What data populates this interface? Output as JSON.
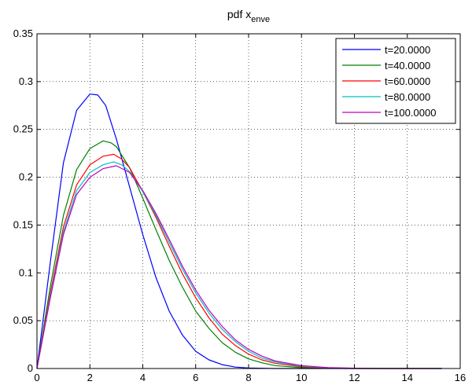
{
  "chart_data": {
    "type": "line",
    "title": "pdf x",
    "title_subscript": "enve",
    "xlabel": "",
    "ylabel": "",
    "xlim": [
      0,
      16
    ],
    "ylim": [
      0,
      0.35
    ],
    "xticks": [
      0,
      2,
      4,
      6,
      8,
      10,
      12,
      14,
      16
    ],
    "yticks": [
      0,
      0.05,
      0.1,
      0.15,
      0.2,
      0.25,
      0.3,
      0.35
    ],
    "xtick_labels": [
      "0",
      "2",
      "4",
      "6",
      "8",
      "10",
      "12",
      "14",
      "16"
    ],
    "ytick_labels": [
      "0",
      "0.05",
      "0.1",
      "0.15",
      "0.2",
      "0.25",
      "0.3",
      "0.35"
    ],
    "grid": true,
    "legend_position": "top-right",
    "series": [
      {
        "name": "t=20.0000",
        "color": "#0000ff",
        "x": [
          0,
          0.5,
          1,
          1.5,
          2,
          2.3,
          2.6,
          3,
          3.5,
          4,
          4.5,
          5,
          5.5,
          6,
          6.5,
          7,
          7.5,
          8,
          9,
          10,
          12,
          14,
          15.3
        ],
        "y": [
          0,
          0.11,
          0.215,
          0.27,
          0.287,
          0.286,
          0.275,
          0.24,
          0.19,
          0.14,
          0.095,
          0.06,
          0.035,
          0.018,
          0.009,
          0.004,
          0.0015,
          0.0005,
          0,
          0,
          0,
          0,
          0
        ]
      },
      {
        "name": "t=40.0000",
        "color": "#008000",
        "x": [
          0,
          0.5,
          1,
          1.5,
          2,
          2.5,
          2.8,
          3,
          3.5,
          4,
          4.5,
          5,
          5.5,
          6,
          6.5,
          7,
          7.5,
          8,
          8.5,
          9,
          10,
          11,
          12,
          13,
          14,
          15.3
        ],
        "y": [
          0,
          0.085,
          0.16,
          0.208,
          0.23,
          0.238,
          0.236,
          0.232,
          0.21,
          0.178,
          0.145,
          0.113,
          0.085,
          0.06,
          0.042,
          0.027,
          0.017,
          0.01,
          0.006,
          0.003,
          0.0008,
          0.0002,
          0,
          0,
          0,
          0
        ]
      },
      {
        "name": "t=60.0000",
        "color": "#ff0000",
        "x": [
          0,
          0.5,
          1,
          1.5,
          2,
          2.5,
          2.9,
          3.2,
          3.5,
          4,
          4.5,
          5,
          5.5,
          6,
          6.5,
          7,
          7.5,
          8,
          8.5,
          9,
          10,
          11,
          12,
          13,
          14,
          15.3
        ],
        "y": [
          0,
          0.078,
          0.148,
          0.192,
          0.213,
          0.222,
          0.224,
          0.219,
          0.21,
          0.185,
          0.158,
          0.128,
          0.099,
          0.074,
          0.053,
          0.036,
          0.024,
          0.015,
          0.009,
          0.0055,
          0.0018,
          0.0005,
          0.0001,
          0,
          0,
          0
        ]
      },
      {
        "name": "t=80.0000",
        "color": "#00bfbf",
        "x": [
          0,
          0.5,
          1,
          1.5,
          2,
          2.5,
          2.9,
          3.2,
          3.5,
          4,
          4.5,
          5,
          5.5,
          6,
          6.5,
          7,
          7.5,
          8,
          8.5,
          9,
          10,
          11,
          12,
          13,
          14,
          15.3
        ],
        "y": [
          0,
          0.075,
          0.143,
          0.186,
          0.205,
          0.213,
          0.216,
          0.213,
          0.206,
          0.185,
          0.16,
          0.132,
          0.104,
          0.079,
          0.058,
          0.041,
          0.028,
          0.018,
          0.011,
          0.007,
          0.0025,
          0.0008,
          0.0002,
          0,
          0,
          0
        ]
      },
      {
        "name": "t=100.0000",
        "color": "#bf00bf",
        "x": [
          0,
          0.5,
          1,
          1.5,
          2,
          2.5,
          3,
          3.5,
          4,
          4.5,
          5,
          5.5,
          6,
          6.5,
          7,
          7.5,
          8,
          8.5,
          9,
          10,
          11,
          12,
          13,
          14,
          15.3
        ],
        "y": [
          0,
          0.073,
          0.14,
          0.182,
          0.2,
          0.209,
          0.212,
          0.205,
          0.186,
          0.162,
          0.135,
          0.107,
          0.082,
          0.061,
          0.044,
          0.03,
          0.02,
          0.013,
          0.008,
          0.003,
          0.001,
          0.0003,
          0,
          0,
          0
        ]
      }
    ]
  }
}
